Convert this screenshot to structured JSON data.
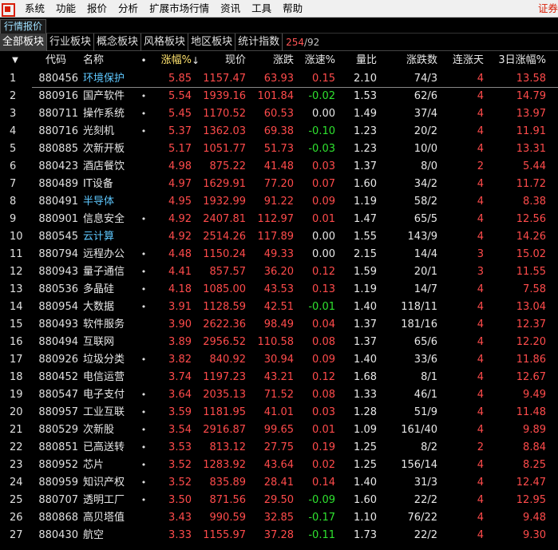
{
  "menubar": {
    "items": [
      "系统",
      "功能",
      "报价",
      "分析",
      "扩展市场行情",
      "资讯",
      "工具",
      "帮助"
    ],
    "right_text": "证券"
  },
  "window_tab": {
    "label": "行情报价"
  },
  "category_tabs": {
    "items": [
      "全部板块",
      "行业板块",
      "概念板块",
      "风格板块",
      "地区板块",
      "统计指数"
    ],
    "active_index": 0,
    "count_current": "254",
    "count_sep": "/",
    "count_total": "92"
  },
  "table": {
    "headers": {
      "code": "代码",
      "name": "名称",
      "dot": "•",
      "pct": "涨幅%",
      "pct_arrow": "↓",
      "price": "现价",
      "change": "涨跌",
      "speed": "涨速%",
      "volume_ratio": "量比",
      "up_down": "涨跌数",
      "streak": "连涨天",
      "pct_3d": "3日涨幅%"
    },
    "rows": [
      {
        "idx": "1",
        "code": "880456",
        "name": "环境保护",
        "link": true,
        "flag": "",
        "pct": "5.85",
        "price": "1157.47",
        "change": "63.93",
        "speed": "0.15",
        "speed_dir": "up",
        "vr": "2.10",
        "updown": "74/3",
        "days": "4",
        "pct3d": "13.58"
      },
      {
        "idx": "2",
        "code": "880916",
        "name": "国产软件",
        "link": false,
        "flag": "•",
        "pct": "5.54",
        "price": "1939.16",
        "change": "101.84",
        "speed": "-0.02",
        "speed_dir": "down",
        "vr": "1.53",
        "updown": "62/6",
        "days": "4",
        "pct3d": "14.79"
      },
      {
        "idx": "3",
        "code": "880711",
        "name": "操作系统",
        "link": false,
        "flag": "•",
        "pct": "5.45",
        "price": "1170.52",
        "change": "60.53",
        "speed": "0.00",
        "speed_dir": "flat",
        "vr": "1.49",
        "updown": "37/4",
        "days": "4",
        "pct3d": "13.97"
      },
      {
        "idx": "4",
        "code": "880716",
        "name": "光刻机",
        "link": false,
        "flag": "•",
        "pct": "5.37",
        "price": "1362.03",
        "change": "69.38",
        "speed": "-0.10",
        "speed_dir": "down",
        "vr": "1.23",
        "updown": "20/2",
        "days": "4",
        "pct3d": "11.91"
      },
      {
        "idx": "5",
        "code": "880885",
        "name": "次新开板",
        "link": false,
        "flag": "",
        "pct": "5.17",
        "price": "1051.77",
        "change": "51.73",
        "speed": "-0.03",
        "speed_dir": "down",
        "vr": "1.23",
        "updown": "10/0",
        "days": "4",
        "pct3d": "13.31"
      },
      {
        "idx": "6",
        "code": "880423",
        "name": "酒店餐饮",
        "link": false,
        "flag": "",
        "pct": "4.98",
        "price": "875.22",
        "change": "41.48",
        "speed": "0.03",
        "speed_dir": "up",
        "vr": "1.37",
        "updown": "8/0",
        "days": "2",
        "pct3d": "5.44"
      },
      {
        "idx": "7",
        "code": "880489",
        "name": "IT设备",
        "link": false,
        "flag": "",
        "pct": "4.97",
        "price": "1629.91",
        "change": "77.20",
        "speed": "0.07",
        "speed_dir": "up",
        "vr": "1.60",
        "updown": "34/2",
        "days": "4",
        "pct3d": "11.72"
      },
      {
        "idx": "8",
        "code": "880491",
        "name": "半导体",
        "link": true,
        "flag": "",
        "pct": "4.95",
        "price": "1932.99",
        "change": "91.22",
        "speed": "0.09",
        "speed_dir": "up",
        "vr": "1.19",
        "updown": "58/2",
        "days": "4",
        "pct3d": "8.38"
      },
      {
        "idx": "9",
        "code": "880901",
        "name": "信息安全",
        "link": false,
        "flag": "•",
        "pct": "4.92",
        "price": "2407.81",
        "change": "112.97",
        "speed": "0.01",
        "speed_dir": "up",
        "vr": "1.47",
        "updown": "65/5",
        "days": "4",
        "pct3d": "12.56"
      },
      {
        "idx": "10",
        "code": "880545",
        "name": "云计算",
        "link": true,
        "flag": "",
        "pct": "4.92",
        "price": "2514.26",
        "change": "117.89",
        "speed": "0.00",
        "speed_dir": "flat",
        "vr": "1.55",
        "updown": "143/9",
        "days": "4",
        "pct3d": "14.26"
      },
      {
        "idx": "11",
        "code": "880794",
        "name": "远程办公",
        "link": false,
        "flag": "•",
        "pct": "4.48",
        "price": "1150.24",
        "change": "49.33",
        "speed": "0.00",
        "speed_dir": "flat",
        "vr": "2.15",
        "updown": "14/4",
        "days": "3",
        "pct3d": "15.02"
      },
      {
        "idx": "12",
        "code": "880943",
        "name": "量子通信",
        "link": false,
        "flag": "•",
        "pct": "4.41",
        "price": "857.57",
        "change": "36.20",
        "speed": "0.12",
        "speed_dir": "up",
        "vr": "1.59",
        "updown": "20/1",
        "days": "3",
        "pct3d": "11.55"
      },
      {
        "idx": "13",
        "code": "880536",
        "name": "多晶硅",
        "link": false,
        "flag": "•",
        "pct": "4.18",
        "price": "1085.00",
        "change": "43.53",
        "speed": "0.13",
        "speed_dir": "up",
        "vr": "1.19",
        "updown": "14/7",
        "days": "4",
        "pct3d": "7.58"
      },
      {
        "idx": "14",
        "code": "880954",
        "name": "大数据",
        "link": false,
        "flag": "•",
        "pct": "3.91",
        "price": "1128.59",
        "change": "42.51",
        "speed": "-0.01",
        "speed_dir": "down",
        "vr": "1.40",
        "updown": "118/11",
        "days": "4",
        "pct3d": "13.04"
      },
      {
        "idx": "15",
        "code": "880493",
        "name": "软件服务",
        "link": false,
        "flag": "",
        "pct": "3.90",
        "price": "2622.36",
        "change": "98.49",
        "speed": "0.04",
        "speed_dir": "up",
        "vr": "1.37",
        "updown": "181/16",
        "days": "4",
        "pct3d": "12.37"
      },
      {
        "idx": "16",
        "code": "880494",
        "name": "互联网",
        "link": false,
        "flag": "",
        "pct": "3.89",
        "price": "2956.52",
        "change": "110.58",
        "speed": "0.08",
        "speed_dir": "up",
        "vr": "1.37",
        "updown": "65/6",
        "days": "4",
        "pct3d": "12.20"
      },
      {
        "idx": "17",
        "code": "880926",
        "name": "垃圾分类",
        "link": false,
        "flag": "•",
        "pct": "3.82",
        "price": "840.92",
        "change": "30.94",
        "speed": "0.09",
        "speed_dir": "up",
        "vr": "1.40",
        "updown": "33/6",
        "days": "4",
        "pct3d": "11.86"
      },
      {
        "idx": "18",
        "code": "880452",
        "name": "电信运营",
        "link": false,
        "flag": "",
        "pct": "3.74",
        "price": "1197.23",
        "change": "43.21",
        "speed": "0.12",
        "speed_dir": "up",
        "vr": "1.68",
        "updown": "8/1",
        "days": "4",
        "pct3d": "12.67"
      },
      {
        "idx": "19",
        "code": "880547",
        "name": "电子支付",
        "link": false,
        "flag": "•",
        "pct": "3.64",
        "price": "2035.13",
        "change": "71.52",
        "speed": "0.08",
        "speed_dir": "up",
        "vr": "1.33",
        "updown": "46/1",
        "days": "4",
        "pct3d": "9.49"
      },
      {
        "idx": "20",
        "code": "880957",
        "name": "工业互联",
        "link": false,
        "flag": "•",
        "pct": "3.59",
        "price": "1181.95",
        "change": "41.01",
        "speed": "0.03",
        "speed_dir": "up",
        "vr": "1.28",
        "updown": "51/9",
        "days": "4",
        "pct3d": "11.48"
      },
      {
        "idx": "21",
        "code": "880529",
        "name": "次新股",
        "link": false,
        "flag": "•",
        "pct": "3.54",
        "price": "2916.87",
        "change": "99.65",
        "speed": "0.01",
        "speed_dir": "up",
        "vr": "1.09",
        "updown": "161/40",
        "days": "4",
        "pct3d": "9.89"
      },
      {
        "idx": "22",
        "code": "880851",
        "name": "已高送转",
        "link": false,
        "flag": "•",
        "pct": "3.53",
        "price": "813.12",
        "change": "27.75",
        "speed": "0.19",
        "speed_dir": "up",
        "vr": "1.25",
        "updown": "8/2",
        "days": "2",
        "pct3d": "8.84"
      },
      {
        "idx": "23",
        "code": "880952",
        "name": "芯片",
        "link": false,
        "flag": "•",
        "pct": "3.52",
        "price": "1283.92",
        "change": "43.64",
        "speed": "0.02",
        "speed_dir": "up",
        "vr": "1.25",
        "updown": "156/14",
        "days": "4",
        "pct3d": "8.25"
      },
      {
        "idx": "24",
        "code": "880959",
        "name": "知识产权",
        "link": false,
        "flag": "•",
        "pct": "3.52",
        "price": "835.89",
        "change": "28.41",
        "speed": "0.14",
        "speed_dir": "up",
        "vr": "1.40",
        "updown": "31/3",
        "days": "4",
        "pct3d": "12.47"
      },
      {
        "idx": "25",
        "code": "880707",
        "name": "透明工厂",
        "link": false,
        "flag": "•",
        "pct": "3.50",
        "price": "871.56",
        "change": "29.50",
        "speed": "-0.09",
        "speed_dir": "down",
        "vr": "1.60",
        "updown": "22/2",
        "days": "4",
        "pct3d": "12.95"
      },
      {
        "idx": "26",
        "code": "880868",
        "name": "高贝塔值",
        "link": false,
        "flag": "",
        "pct": "3.43",
        "price": "990.59",
        "change": "32.85",
        "speed": "-0.17",
        "speed_dir": "down",
        "vr": "1.10",
        "updown": "76/22",
        "days": "4",
        "pct3d": "9.48"
      },
      {
        "idx": "27",
        "code": "880430",
        "name": "航空",
        "link": false,
        "flag": "",
        "pct": "3.33",
        "price": "1155.97",
        "change": "37.28",
        "speed": "-0.11",
        "speed_dir": "down",
        "vr": "1.73",
        "updown": "22/2",
        "days": "4",
        "pct3d": "9.30"
      }
    ]
  },
  "colors": {
    "up": "#ff4b4b",
    "down": "#2fe22f",
    "flat": "#e8e8e8",
    "link": "#5ec8ff",
    "background": "#000000"
  },
  "icons": {
    "logo": "app-logo-icon",
    "sort_desc": "sort-down-icon"
  }
}
